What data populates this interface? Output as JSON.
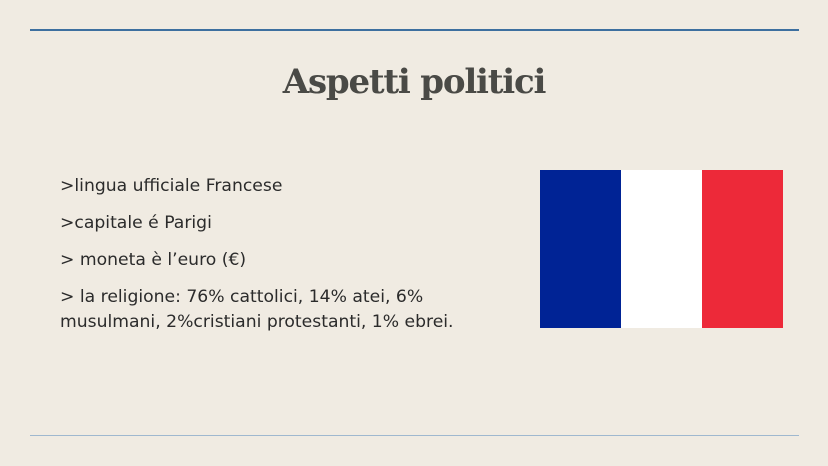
{
  "slide": {
    "title": "Aspetti politici",
    "bullets": [
      ">lingua ufficiale Francese",
      ">capitale é Parigi",
      "> moneta è l’euro (€)",
      "> la religione: 76% cattolici, 14% atei, 6% musulmani, 2%cristiani protestanti, 1% ebrei."
    ]
  },
  "flag": {
    "icon": "france-flag",
    "colors": {
      "blue": "#002395",
      "white": "#ffffff",
      "red": "#ed2939"
    }
  },
  "theme": {
    "background": "#f0ebe2",
    "rule_color": "#3d6f9f",
    "title_color": "#4a4a46",
    "text_color": "#2b2b2b"
  }
}
